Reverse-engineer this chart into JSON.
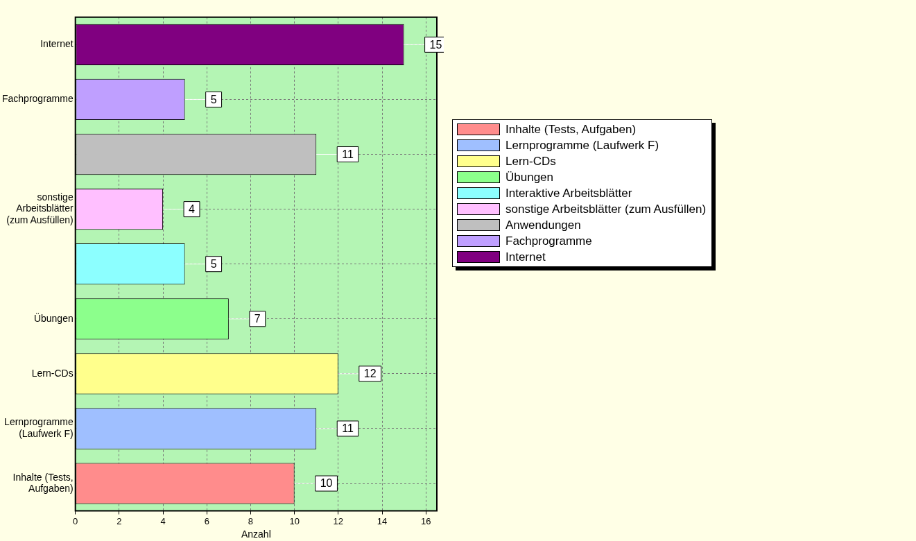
{
  "chart_data": {
    "type": "bar",
    "orientation": "horizontal",
    "stacked": true,
    "xlabel": "Anzahl",
    "categories": [
      "Internet",
      "Fachprogramme",
      null,
      "sonstige Arbeitsblätter (zum Ausfüllen)",
      null,
      "Übungen",
      "Lern-CDs",
      "Lernprogramme (Laufwerk F)",
      "Inhalte (Tests, Aufgaben)"
    ],
    "series": [
      {
        "name": "Inhalte (Tests, Aufgaben)",
        "color": "#ff8c8c",
        "values": [
          null,
          null,
          null,
          null,
          null,
          null,
          null,
          null,
          10
        ]
      },
      {
        "name": "Lernprogramme (Laufwerk F)",
        "color": "#9fbfff",
        "values": [
          null,
          null,
          null,
          null,
          null,
          null,
          null,
          11,
          null
        ]
      },
      {
        "name": "Lern-CDs",
        "color": "#ffff8c",
        "values": [
          null,
          null,
          null,
          null,
          null,
          null,
          12,
          null,
          null
        ]
      },
      {
        "name": "Übungen",
        "color": "#8cff8c",
        "values": [
          null,
          null,
          null,
          null,
          null,
          7,
          null,
          null,
          null
        ]
      },
      {
        "name": "Interaktive Arbeitsblätter",
        "color": "#8cffff",
        "values": [
          null,
          null,
          null,
          null,
          5,
          null,
          null,
          null,
          null
        ]
      },
      {
        "name": "sonstige Arbeitsblätter (zum Ausfüllen)",
        "color": "#ffbfff",
        "values": [
          null,
          null,
          null,
          4,
          null,
          null,
          null,
          null,
          null
        ]
      },
      {
        "name": "Anwendungen",
        "color": "#bfbfbf",
        "values": [
          null,
          null,
          11,
          null,
          null,
          null,
          null,
          null,
          null
        ]
      },
      {
        "name": "Fachprogramme",
        "color": "#bf9fff",
        "values": [
          null,
          5,
          null,
          null,
          null,
          null,
          null,
          null,
          null
        ]
      },
      {
        "name": "Internet",
        "color": "#800080",
        "values": [
          15,
          null,
          null,
          null,
          null,
          null,
          null,
          null,
          null
        ]
      }
    ],
    "xlim": [
      0,
      16.5
    ],
    "xticks": [
      0,
      2,
      4,
      6,
      8,
      10,
      12,
      14,
      16
    ],
    "grid": true,
    "legend": "right",
    "data_labels": true
  }
}
